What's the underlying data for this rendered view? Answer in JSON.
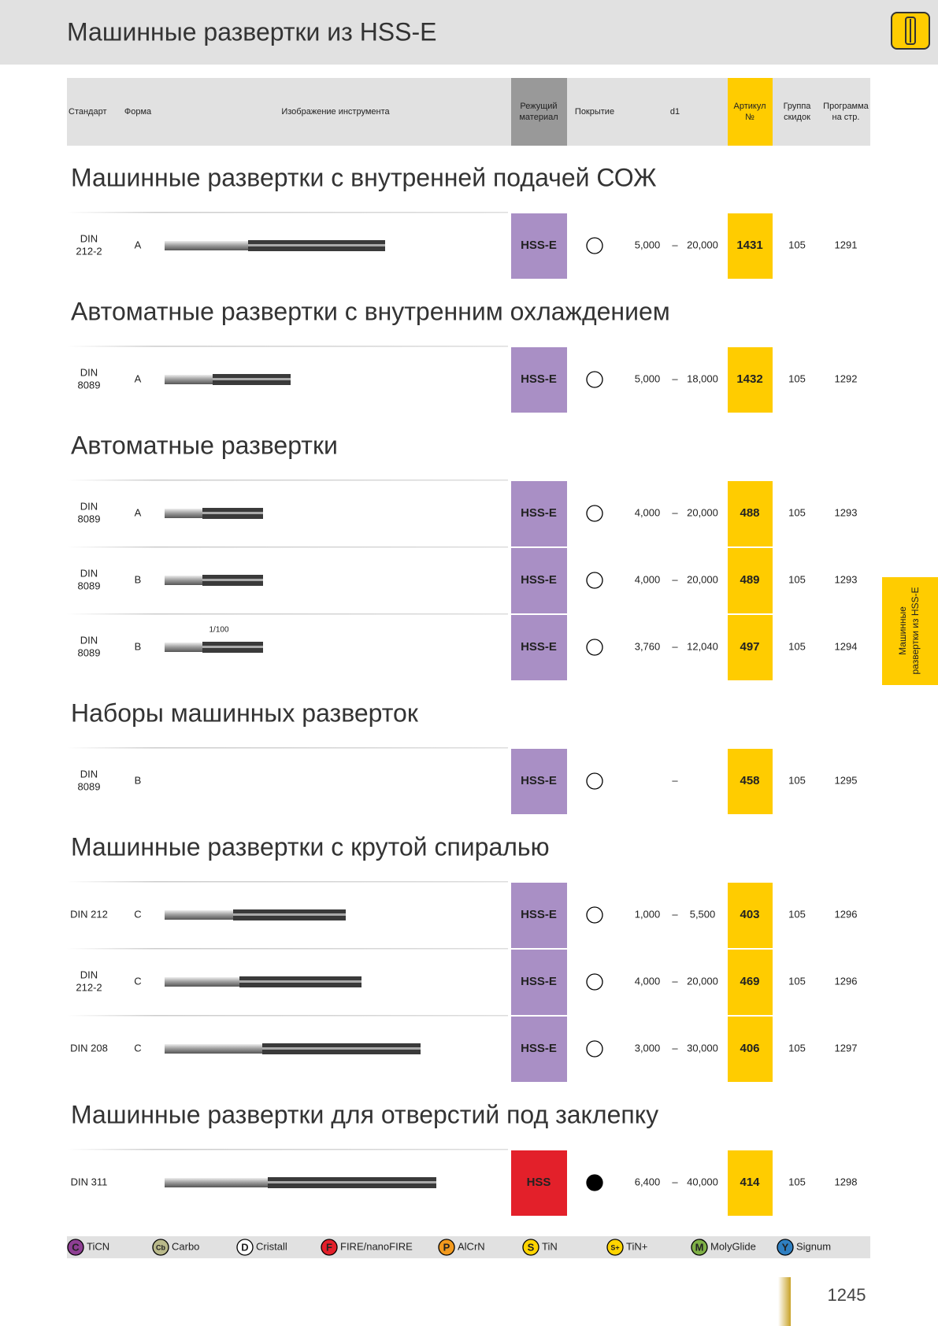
{
  "header": {
    "title": "Машинные развертки из HSS-E"
  },
  "columns": {
    "standard": "Стандарт",
    "form": "Форма",
    "image": "Изображение инструмента",
    "material": [
      "Режущий",
      "материал"
    ],
    "coating": "Покрытие",
    "d1": "d1",
    "article": [
      "Артикул",
      "№"
    ],
    "group": [
      "Группа",
      "скидок"
    ],
    "program": [
      "Программа",
      "на стр."
    ]
  },
  "sections": [
    {
      "title": "Машинные развертки с внутренней подачей СОЖ",
      "rows": [
        {
          "standard": [
            "DIN",
            "212-2"
          ],
          "form": "A",
          "material": "HSS-E",
          "material_color": "#a98fc5",
          "coating_fill": "none",
          "d1": [
            "5,000",
            "–",
            "20,000"
          ],
          "article": "1431",
          "group": "105",
          "page": "1291"
        }
      ]
    },
    {
      "title": "Автоматные развертки с внутренним охлаждением",
      "rows": [
        {
          "standard": [
            "DIN",
            "8089"
          ],
          "form": "A",
          "material": "HSS-E",
          "material_color": "#a98fc5",
          "coating_fill": "none",
          "d1": [
            "5,000",
            "–",
            "18,000"
          ],
          "article": "1432",
          "group": "105",
          "page": "1292"
        }
      ]
    },
    {
      "title": "Автоматные развертки",
      "rows": [
        {
          "standard": [
            "DIN",
            "8089"
          ],
          "form": "A",
          "material": "HSS-E",
          "material_color": "#a98fc5",
          "coating_fill": "none",
          "d1": [
            "4,000",
            "–",
            "20,000"
          ],
          "article": "488",
          "group": "105",
          "page": "1293"
        },
        {
          "standard": [
            "DIN",
            "8089"
          ],
          "form": "B",
          "material": "HSS-E",
          "material_color": "#a98fc5",
          "coating_fill": "none",
          "d1": [
            "4,000",
            "–",
            "20,000"
          ],
          "article": "489",
          "group": "105",
          "page": "1293"
        },
        {
          "standard": [
            "DIN",
            "8089"
          ],
          "form": "B",
          "note": "1/100",
          "material": "HSS-E",
          "material_color": "#a98fc5",
          "coating_fill": "none",
          "d1": [
            "3,760",
            "–",
            "12,040"
          ],
          "article": "497",
          "group": "105",
          "page": "1294"
        }
      ]
    },
    {
      "title": "Наборы машинных разверток",
      "rows": [
        {
          "standard": [
            "DIN",
            "8089"
          ],
          "form": "B",
          "material": "HSS-E",
          "material_color": "#a98fc5",
          "coating_fill": "none",
          "d1": [
            "–"
          ],
          "article": "458",
          "group": "105",
          "page": "1295"
        }
      ]
    },
    {
      "title": "Машинные развертки с крутой спиралью",
      "rows": [
        {
          "standard": [
            "DIN 212"
          ],
          "form": "C",
          "material": "HSS-E",
          "material_color": "#a98fc5",
          "coating_fill": "none",
          "d1": [
            "1,000",
            "–",
            "5,500"
          ],
          "article": "403",
          "group": "105",
          "page": "1296"
        },
        {
          "standard": [
            "DIN",
            "212-2"
          ],
          "form": "C",
          "material": "HSS-E",
          "material_color": "#a98fc5",
          "coating_fill": "none",
          "d1": [
            "4,000",
            "–",
            "20,000"
          ],
          "article": "469",
          "group": "105",
          "page": "1296"
        },
        {
          "standard": [
            "DIN 208"
          ],
          "form": "C",
          "material": "HSS-E",
          "material_color": "#a98fc5",
          "coating_fill": "none",
          "d1": [
            "3,000",
            "–",
            "30,000"
          ],
          "article": "406",
          "group": "105",
          "page": "1297"
        }
      ]
    },
    {
      "title": "Машинные развертки для отверстий под заклепку",
      "rows": [
        {
          "standard": [
            "DIN 311"
          ],
          "material": "HSS",
          "material_color": "#e3202a",
          "coating_fill": "#000000",
          "d1": [
            "6,400",
            "–",
            "40,000"
          ],
          "article": "414",
          "group": "105",
          "page": "1298"
        }
      ]
    }
  ],
  "legend": [
    {
      "symbol": "C",
      "label": "TiCN",
      "color": "#8e3f93"
    },
    {
      "symbol": "Cb",
      "label": "Carbo",
      "color": "#b9b98a"
    },
    {
      "symbol": "D",
      "label": "Cristall",
      "color": "#ffffff"
    },
    {
      "symbol": "F",
      "label": "FIRE/nanoFIRE",
      "color": "#e3202a"
    },
    {
      "symbol": "P",
      "label": "AlCrN",
      "color": "#f39a1e"
    },
    {
      "symbol": "S",
      "label": "TiN",
      "color": "#ffd400"
    },
    {
      "symbol": "S+",
      "label": "TiN+",
      "color": "#ffd400"
    },
    {
      "symbol": "M",
      "label": "MolyGlide",
      "color": "#7fb046"
    },
    {
      "symbol": "Y",
      "label": "Signum",
      "color": "#2f7fc1"
    }
  ],
  "side_tab": [
    "Машинные",
    "развертки из HSS-E"
  ],
  "page_number": "1245"
}
